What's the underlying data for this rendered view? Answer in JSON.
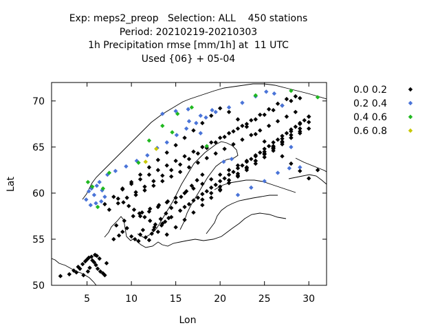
{
  "header": {
    "line1": "Exp: meps2_preop   Selection: ALL    450 stations",
    "line2": "Period: 20210219-20210303",
    "line3": "1h Precipitation rmse [mm/1h] at  11 UTC",
    "line4": "Used {06} + 05-04"
  },
  "chart_data": {
    "type": "scatter",
    "xlabel": "Lon",
    "ylabel": "Lat",
    "xlim": [
      1,
      32
    ],
    "ylim": [
      50,
      72
    ],
    "x_ticks": [
      5,
      10,
      15,
      20,
      25,
      30
    ],
    "y_ticks": [
      50,
      55,
      60,
      65,
      70
    ],
    "grid": false,
    "legend_position": "right",
    "series": [
      {
        "name": "0.0 0.2",
        "color": "#000000",
        "lon": [
          2,
          3,
          3.5,
          4,
          4.5,
          5,
          5.2,
          5.5,
          5.8,
          6,
          6.2,
          6.5,
          6.8,
          7,
          4.2,
          4.8,
          5.3,
          5.6,
          6.1,
          3.8,
          4.6,
          5.1,
          5.9,
          6.4,
          7.2,
          8,
          8.6,
          9,
          9.5,
          10,
          10.4,
          10.8,
          11,
          11.3,
          11.6,
          12,
          12.3,
          12.6,
          13,
          13.4,
          13.8,
          14.2,
          8.3,
          9.2,
          10.2,
          11.2,
          12.1,
          13.1,
          14.1,
          8.5,
          9.1,
          9.7,
          10.3,
          10.9,
          11.5,
          12.1,
          12.7,
          13.3,
          13.9,
          14.5,
          15,
          15.6,
          16.2,
          16.8,
          17.4,
          18,
          9,
          10,
          11,
          12,
          13,
          14,
          15,
          16,
          17,
          18,
          19,
          20,
          21,
          22,
          23,
          24,
          25,
          26,
          27,
          28,
          29,
          10.5,
          11.5,
          12.5,
          13.5,
          14.5,
          15.5,
          16.5,
          17.5,
          18.5,
          19.5,
          20.5,
          21.5,
          22.5,
          23.5,
          24.5,
          25.5,
          26.5,
          27.5,
          28.5,
          7,
          8,
          9,
          10,
          11,
          12,
          13,
          14,
          15,
          16,
          17,
          18,
          19,
          20,
          21,
          22,
          23,
          24,
          25,
          26,
          27,
          28,
          29,
          30,
          7.5,
          8.5,
          9.5,
          10.5,
          11.5,
          12.5,
          13.5,
          14.5,
          15.5,
          16.5,
          17.5,
          18.5,
          19.5,
          20.5,
          21.5,
          22.5,
          23.5,
          24.5,
          25.5,
          26.5,
          27.5,
          28.5,
          11,
          12,
          13,
          14,
          15,
          16,
          17,
          18,
          19,
          20,
          21,
          22,
          23,
          24,
          25,
          26,
          27,
          28,
          29,
          30,
          12.5,
          13.5,
          14.5,
          15.5,
          16.5,
          17.5,
          18.5,
          19.5,
          20.5,
          21.5,
          22.5,
          23.5,
          24.5,
          25.5,
          26.5,
          27.5,
          28.5,
          29.5,
          14,
          15,
          16,
          17,
          18,
          19,
          20,
          21,
          22,
          23,
          24,
          25,
          26,
          27,
          28,
          29,
          30,
          16,
          17,
          18,
          19,
          20,
          21,
          22,
          23,
          24,
          25,
          26,
          27,
          28,
          29,
          30,
          31,
          18,
          19,
          20,
          21,
          22,
          23,
          24,
          25,
          26,
          27,
          28,
          29,
          30,
          20,
          21,
          22,
          23,
          24,
          25,
          26,
          27,
          28,
          29
        ],
        "lat": [
          51,
          51.2,
          51.6,
          52,
          52.3,
          52.8,
          53,
          53.1,
          52.5,
          52.2,
          51.8,
          51.5,
          51.3,
          51.1,
          51.8,
          52.6,
          51.9,
          52.7,
          53.2,
          51.4,
          51.1,
          51.5,
          53.3,
          52.9,
          52.4,
          55,
          55.4,
          55.8,
          56.2,
          55.3,
          55,
          54.8,
          55.5,
          56,
          55.2,
          54.9,
          55.6,
          56.3,
          55.8,
          56.5,
          56.9,
          57.3,
          56.5,
          57,
          57.5,
          57.9,
          58.3,
          58.7,
          59.1,
          59.4,
          59,
          58.6,
          58.2,
          57.8,
          57.4,
          57,
          56.6,
          57.2,
          57.8,
          58.4,
          59,
          59.6,
          60.2,
          60.8,
          61.4,
          62,
          60.5,
          61,
          61.5,
          62,
          62.5,
          63,
          63.5,
          64,
          64.5,
          65,
          65.5,
          66,
          66.5,
          67,
          67.5,
          68,
          68.5,
          69,
          69.5,
          70,
          70.3,
          59.8,
          60.3,
          60.8,
          61.3,
          61.8,
          62.3,
          62.8,
          63.3,
          63.8,
          64.3,
          64.8,
          65.3,
          65.8,
          66.3,
          66.8,
          67.3,
          67.8,
          68.3,
          68.8,
          58.8,
          59.6,
          60.4,
          61.2,
          62,
          62.8,
          63.6,
          64.4,
          65.2,
          66,
          66.8,
          67.6,
          68.4,
          69.2,
          68.8,
          68,
          67.2,
          66.4,
          65.6,
          64.8,
          64,
          63.2,
          62.4,
          61.6,
          58.2,
          58.9,
          59.5,
          60.1,
          60.7,
          61.3,
          61.9,
          62.5,
          63.1,
          63.7,
          64.3,
          64.9,
          65.5,
          66.1,
          66.7,
          67.3,
          67.9,
          68.5,
          69.1,
          69.7,
          70.2,
          70.5,
          57.5,
          58,
          58.5,
          59,
          59.5,
          60,
          60.5,
          61,
          61.5,
          62,
          62.5,
          63,
          63.5,
          64,
          64.5,
          65,
          65.5,
          66,
          66.5,
          67,
          56,
          56.7,
          57.4,
          58.1,
          58.8,
          59.5,
          60.2,
          60.9,
          61.6,
          62.3,
          63,
          63.7,
          64.4,
          65.1,
          65.8,
          66.5,
          67.2,
          67.9,
          55.5,
          56.3,
          57.1,
          57.9,
          58.7,
          59.5,
          60.3,
          61.1,
          61.9,
          62.7,
          63.5,
          64.3,
          65.1,
          65.9,
          66.7,
          67.5,
          68.3,
          58.5,
          59.2,
          59.9,
          60.6,
          61.3,
          62,
          62.7,
          63.4,
          64.1,
          64.8,
          65.5,
          66.2,
          66.9,
          67.6,
          68.3,
          62.5,
          59.3,
          60,
          60.7,
          61.4,
          62.1,
          62.8,
          63.5,
          64.2,
          64.9,
          65.6,
          66.3,
          67,
          67.7,
          60.4,
          61.1,
          61.8,
          62.5,
          63.2,
          63.9,
          64.6,
          65.3,
          66,
          66.7
        ]
      },
      {
        "name": "0.2 0.4",
        "color": "#4a74d8",
        "lon": [
          4.9,
          5.2,
          5.5,
          5.8,
          6.1,
          6.4,
          6.7,
          7,
          5.4,
          6,
          6.6,
          7.3,
          8.2,
          9.4,
          10.6,
          11.8,
          12.9,
          14,
          15.1,
          16.2,
          17.3,
          18.4,
          19.5,
          21,
          22.5,
          24,
          25.2,
          26.1,
          27,
          28,
          29,
          22,
          23.5,
          25,
          26.5,
          27.8,
          16.5,
          17.8,
          19.1,
          20.4,
          13.5,
          15,
          16.4,
          17.8,
          21.3
        ],
        "lat": [
          59.3,
          60.2,
          60.5,
          59.8,
          60.8,
          61.2,
          60.3,
          59.6,
          58.7,
          58.9,
          59.1,
          62,
          62.4,
          62.9,
          63.5,
          64.1,
          64.9,
          65.5,
          66.3,
          67,
          67.6,
          68.2,
          68.8,
          69.3,
          69.8,
          70.5,
          71,
          70.8,
          69.5,
          65,
          62.8,
          59.8,
          60.6,
          61.3,
          62.2,
          62.7,
          67.8,
          68.4,
          69,
          63.4,
          68.6,
          68.9,
          69.1,
          66.5,
          63.7
        ]
      },
      {
        "name": "0.4 0.6",
        "color": "#20b820",
        "lon": [
          5.1,
          5.6,
          6.2,
          6.8,
          7.5,
          12,
          13.5,
          15.2,
          16.8,
          18.5,
          24,
          28,
          31,
          14.6,
          10.8
        ],
        "lat": [
          61.2,
          60.7,
          58.5,
          60.5,
          62.2,
          65.7,
          67.3,
          68.6,
          69.3,
          65.1,
          70.6,
          71.1,
          70.4,
          66.6,
          63.3
        ]
      },
      {
        "name": "0.6 0.8",
        "color": "#c8c800",
        "lon": [
          11.6,
          12.8
        ],
        "lat": [
          63.4,
          64.8
        ]
      }
    ]
  },
  "map": {
    "coastline_color": "#000000",
    "marker_shape": "diamond"
  }
}
